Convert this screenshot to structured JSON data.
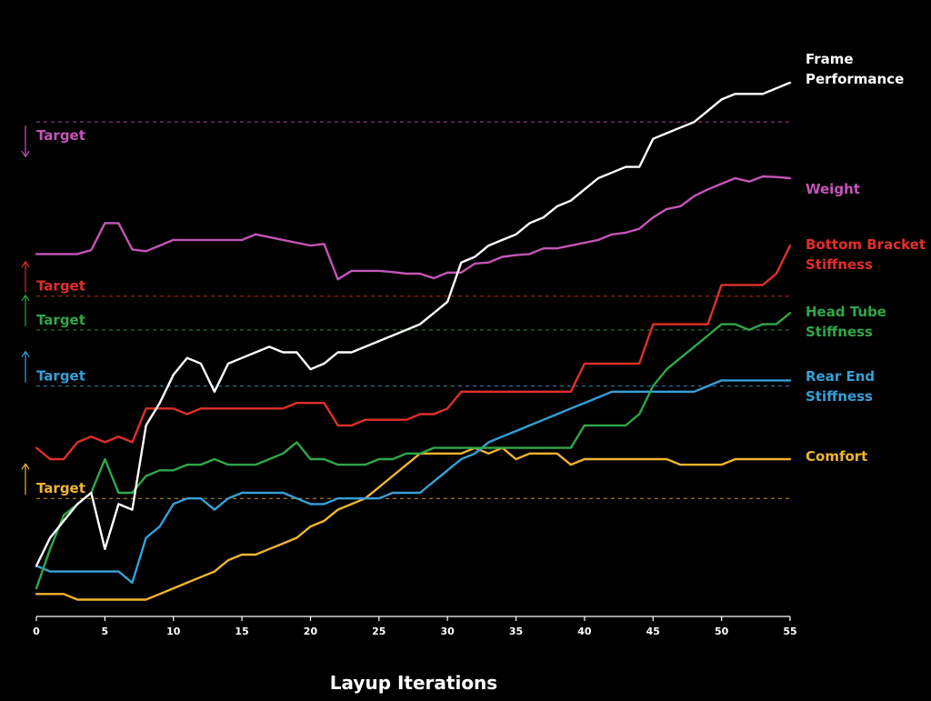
{
  "chart_data": {
    "type": "line",
    "title": "",
    "xlabel": "Layup Iterations",
    "ylabel": "",
    "xlim": [
      0,
      55
    ],
    "ylim": [
      0,
      100
    ],
    "xticks": [
      0,
      5,
      10,
      15,
      20,
      25,
      30,
      35,
      40,
      45,
      50,
      55
    ],
    "grid": false,
    "background": "#000000",
    "series": [
      {
        "name": "Frame Performance",
        "color": "#ffffff",
        "label_lines": [
          "Frame",
          "Performance"
        ],
        "x": [
          0,
          1,
          2,
          3,
          4,
          5,
          6,
          7,
          8,
          9,
          10,
          11,
          12,
          13,
          14,
          15,
          16,
          17,
          18,
          19,
          20,
          21,
          22,
          23,
          24,
          25,
          26,
          27,
          28,
          29,
          30,
          31,
          32,
          33,
          34,
          35,
          36,
          37,
          38,
          39,
          40,
          41,
          42,
          43,
          44,
          45,
          46,
          47,
          48,
          49,
          50,
          51,
          52,
          53,
          54,
          55
        ],
        "values": [
          9,
          14,
          17,
          20,
          22,
          12,
          20,
          19,
          34,
          38,
          43,
          46,
          45,
          40,
          45,
          46,
          47,
          48,
          47,
          47,
          44,
          45,
          47,
          47,
          48,
          49,
          50,
          51,
          52,
          54,
          56,
          63,
          64,
          66,
          67,
          68,
          70,
          71,
          73,
          74,
          76,
          78,
          79,
          80,
          80,
          85,
          86,
          87,
          88,
          90,
          92,
          93,
          93,
          93,
          94,
          95
        ]
      },
      {
        "name": "Weight",
        "color": "#c455b8",
        "label_lines": [
          "Weight"
        ],
        "target": 88,
        "target_direction": "down",
        "target_label": "Target",
        "x": [
          0,
          1,
          2,
          3,
          4,
          5,
          6,
          7,
          8,
          9,
          10,
          11,
          12,
          13,
          14,
          15,
          16,
          17,
          18,
          19,
          20,
          21,
          22,
          23,
          24,
          25,
          26,
          27,
          28,
          29,
          30,
          31,
          32,
          33,
          34,
          35,
          36,
          37,
          38,
          39,
          40,
          41,
          42,
          43,
          44,
          45,
          46,
          47,
          48,
          49,
          50,
          51,
          52,
          53,
          54,
          55
        ],
        "values": [
          64.5,
          64.5,
          64.5,
          64.5,
          65.2,
          70,
          70,
          65.3,
          65,
          66,
          67,
          67,
          67,
          67,
          67,
          67,
          68,
          67.5,
          67,
          66.5,
          66,
          66.3,
          60,
          61.5,
          61.5,
          61.5,
          61.3,
          61,
          61,
          60.2,
          61.2,
          61.2,
          62.8,
          63,
          64,
          64.3,
          64.5,
          65.5,
          65.5,
          66,
          66.5,
          67,
          68,
          68.3,
          69,
          71,
          72.5,
          73,
          74.8,
          76,
          77,
          78,
          77.4,
          78.3,
          78.2,
          78
        ]
      },
      {
        "name": "Bottom Bracket Stiffness",
        "color": "#e0302a",
        "label_lines": [
          "Bottom Bracket",
          "Stiffness"
        ],
        "target": 57,
        "target_direction": "up",
        "target_label": "Target",
        "x": [
          0,
          1,
          2,
          3,
          4,
          5,
          6,
          7,
          8,
          9,
          10,
          11,
          12,
          13,
          14,
          15,
          16,
          17,
          18,
          19,
          20,
          21,
          22,
          23,
          24,
          25,
          26,
          27,
          28,
          29,
          30,
          31,
          32,
          33,
          34,
          35,
          36,
          37,
          38,
          39,
          40,
          41,
          42,
          43,
          44,
          45,
          46,
          47,
          48,
          49,
          50,
          51,
          52,
          53,
          54,
          55
        ],
        "values": [
          30,
          28,
          28,
          31,
          32,
          31,
          32,
          31,
          37,
          37,
          37,
          36,
          37,
          37,
          37,
          37,
          37,
          37,
          37,
          38,
          38,
          38,
          34,
          34,
          35,
          35,
          35,
          35,
          36,
          36,
          37,
          40,
          40,
          40,
          40,
          40,
          40,
          40,
          40,
          40,
          45,
          45,
          45,
          45,
          45,
          52,
          52,
          52,
          52,
          52,
          59,
          59,
          59,
          59,
          61,
          66
        ]
      },
      {
        "name": "Head Tube Stiffness",
        "color": "#2fa84a",
        "label_lines": [
          "Head Tube",
          "Stiffness"
        ],
        "target": 51,
        "target_direction": "up",
        "target_label": "Target",
        "x": [
          0,
          1,
          2,
          3,
          4,
          5,
          6,
          7,
          8,
          9,
          10,
          11,
          12,
          13,
          14,
          15,
          16,
          17,
          18,
          19,
          20,
          21,
          22,
          23,
          24,
          25,
          26,
          27,
          28,
          29,
          30,
          31,
          32,
          33,
          34,
          35,
          36,
          37,
          38,
          39,
          40,
          41,
          42,
          43,
          44,
          45,
          46,
          47,
          48,
          49,
          50,
          51,
          52,
          53,
          54,
          55
        ],
        "values": [
          5,
          12,
          18,
          20,
          22,
          28,
          22,
          22,
          25,
          26,
          26,
          27,
          27,
          28,
          27,
          27,
          27,
          28,
          29,
          31,
          28,
          28,
          27,
          27,
          27,
          28,
          28,
          29,
          29,
          30,
          30,
          30,
          30,
          30,
          30,
          30,
          30,
          30,
          30,
          30,
          34,
          34,
          34,
          34,
          36,
          41,
          44,
          46,
          48,
          50,
          52,
          52,
          51,
          52,
          52,
          54
        ]
      },
      {
        "name": "Rear End Stiffness",
        "color": "#35a0d8",
        "label_lines": [
          "Rear End",
          "Stiffness"
        ],
        "target": 41,
        "target_direction": "up",
        "target_label": "Target",
        "x": [
          0,
          1,
          2,
          3,
          4,
          5,
          6,
          7,
          8,
          9,
          10,
          11,
          12,
          13,
          14,
          15,
          16,
          17,
          18,
          19,
          20,
          21,
          22,
          23,
          24,
          25,
          26,
          27,
          28,
          29,
          30,
          31,
          32,
          33,
          34,
          35,
          36,
          37,
          38,
          39,
          40,
          41,
          42,
          43,
          44,
          45,
          46,
          47,
          48,
          49,
          50,
          51,
          52,
          53,
          54,
          55
        ],
        "values": [
          9,
          8,
          8,
          8,
          8,
          8,
          8,
          6,
          14,
          16,
          20,
          21,
          21,
          19,
          21,
          22,
          22,
          22,
          22,
          21,
          20,
          20,
          21,
          21,
          21,
          21,
          22,
          22,
          22,
          24,
          26,
          28,
          29,
          31,
          32,
          33,
          34,
          35,
          36,
          37,
          38,
          39,
          40,
          40,
          40,
          40,
          40,
          40,
          40,
          41,
          42,
          42,
          42,
          42,
          42,
          42
        ]
      },
      {
        "name": "Comfort",
        "color": "#f0b430",
        "label_lines": [
          "Comfort"
        ],
        "target": 21,
        "target_direction": "up",
        "target_label": "Target",
        "x": [
          0,
          1,
          2,
          3,
          4,
          5,
          6,
          7,
          8,
          9,
          10,
          11,
          12,
          13,
          14,
          15,
          16,
          17,
          18,
          19,
          20,
          21,
          22,
          23,
          24,
          25,
          26,
          27,
          28,
          29,
          30,
          31,
          32,
          33,
          34,
          35,
          36,
          37,
          38,
          39,
          40,
          41,
          42,
          43,
          44,
          45,
          46,
          47,
          48,
          49,
          50,
          51,
          52,
          53,
          54,
          55
        ],
        "values": [
          4,
          4,
          4,
          3,
          3,
          3,
          3,
          3,
          3,
          4,
          5,
          6,
          7,
          8,
          10,
          11,
          11,
          12,
          13,
          14,
          16,
          17,
          19,
          20,
          21,
          23,
          25,
          27,
          29,
          29,
          29,
          29,
          30,
          29,
          30,
          28,
          29,
          29,
          29,
          27,
          28,
          28,
          28,
          28,
          28,
          28,
          28,
          27,
          27,
          27,
          27,
          28,
          28,
          28,
          28,
          28
        ]
      }
    ]
  }
}
